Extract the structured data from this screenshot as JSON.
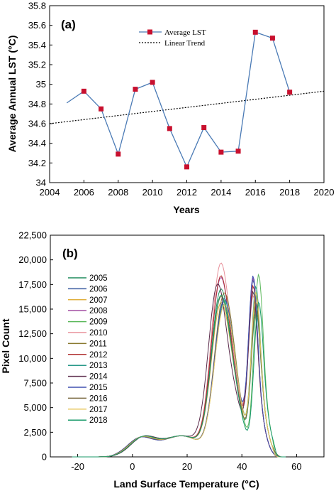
{
  "chart_data": [
    {
      "type": "line",
      "panel_label": "(a)",
      "xlabel": "Years",
      "ylabel": "Average Annual LST  (°C)",
      "xlim": [
        2004,
        2020
      ],
      "ylim": [
        34,
        35.8
      ],
      "xticks": [
        "2004",
        "2006",
        "2008",
        "2010",
        "2012",
        "2014",
        "2016",
        "2018",
        "2020"
      ],
      "yticks": [
        "34",
        "34.2",
        "34.4",
        "34.6",
        "34.8",
        "35",
        "35.2",
        "35.4",
        "35.6",
        "35.8"
      ],
      "legend_position": "top-center",
      "series": [
        {
          "name": "Average LST",
          "color": "#4a7ab5",
          "marker_color": "#c8102e",
          "x": [
            2005,
            2006,
            2007,
            2008,
            2009,
            2010,
            2011,
            2012,
            2013,
            2014,
            2015,
            2016,
            2017,
            2018
          ],
          "y": [
            34.81,
            34.93,
            34.75,
            34.29,
            34.95,
            35.02,
            34.55,
            34.16,
            34.56,
            34.31,
            34.32,
            35.53,
            35.47,
            34.92
          ],
          "markers_from_index": 1
        },
        {
          "name": "Linear Trend",
          "style": "dotted",
          "color": "#000000",
          "x": [
            2004,
            2020
          ],
          "y": [
            34.6,
            34.93
          ]
        }
      ]
    },
    {
      "type": "line",
      "panel_label": "(b)",
      "xlabel": "Land Surface Temperature  (°C)",
      "ylabel": "Pixel Count",
      "xlim": [
        -30,
        70
      ],
      "ylim": [
        0,
        22500
      ],
      "xticks": [
        "-20",
        "0",
        "20",
        "40",
        "60"
      ],
      "yticks": [
        "0",
        "2,500",
        "5,000",
        "7,500",
        "10,000",
        "12,500",
        "15,000",
        "17,500",
        "20,000",
        "22,500"
      ],
      "legend_position": "left",
      "series": [
        {
          "name": "2005",
          "color": "#1f8a5c",
          "first_peak": 17600,
          "second_peak": 14000,
          "trough": 7200,
          "peak1_x": 32,
          "peak2_x": 45
        },
        {
          "name": "2006",
          "color": "#3a5ba0",
          "first_peak": 15400,
          "second_peak": 16800,
          "trough": 6600,
          "peak1_x": 33,
          "peak2_x": 44
        },
        {
          "name": "2007",
          "color": "#e0b040",
          "first_peak": 16200,
          "second_peak": 15400,
          "trough": 7400,
          "peak1_x": 32,
          "peak2_x": 45
        },
        {
          "name": "2008",
          "color": "#a04aa0",
          "first_peak": 18800,
          "second_peak": 17000,
          "trough": 7100,
          "peak1_x": 32,
          "peak2_x": 44
        },
        {
          "name": "2009",
          "color": "#5cb85c",
          "first_peak": 15800,
          "second_peak": 17800,
          "trough": 7000,
          "peak1_x": 33,
          "peak2_x": 46
        },
        {
          "name": "2010",
          "color": "#e8909a",
          "first_peak": 20200,
          "second_peak": 15200,
          "trough": 7600,
          "peak1_x": 32,
          "peak2_x": 44
        },
        {
          "name": "2011",
          "color": "#8a7a30",
          "first_peak": 16400,
          "second_peak": 14600,
          "trough": 7500,
          "peak1_x": 33,
          "peak2_x": 45
        },
        {
          "name": "2012",
          "color": "#b03030",
          "first_peak": 19000,
          "second_peak": 16200,
          "trough": 6900,
          "peak1_x": 32,
          "peak2_x": 44
        },
        {
          "name": "2013",
          "color": "#2a9a8a",
          "first_peak": 15600,
          "second_peak": 16400,
          "trough": 7300,
          "peak1_x": 33,
          "peak2_x": 45
        },
        {
          "name": "2014",
          "color": "#5a2a4a",
          "first_peak": 18600,
          "second_peak": 15600,
          "trough": 7200,
          "peak1_x": 31,
          "peak2_x": 44
        },
        {
          "name": "2015",
          "color": "#4050b0",
          "first_peak": 16000,
          "second_peak": 17200,
          "trough": 6700,
          "peak1_x": 33,
          "peak2_x": 44
        },
        {
          "name": "2016",
          "color": "#7a6a40",
          "first_peak": 16800,
          "second_peak": 14800,
          "trough": 7600,
          "peak1_x": 32,
          "peak2_x": 45
        },
        {
          "name": "2017",
          "color": "#e8c860",
          "first_peak": 15200,
          "second_peak": 15800,
          "trough": 7400,
          "peak1_x": 33,
          "peak2_x": 45
        },
        {
          "name": "2018",
          "color": "#1a9a6a",
          "first_peak": 17000,
          "second_peak": 15000,
          "trough": 7100,
          "peak1_x": 32,
          "peak2_x": 46
        }
      ]
    }
  ]
}
